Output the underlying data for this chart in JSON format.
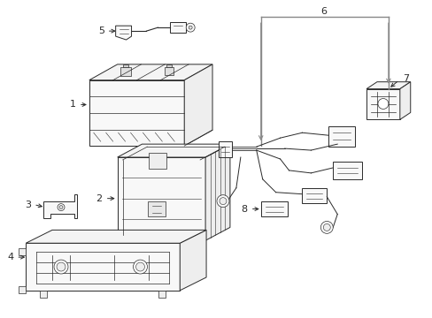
{
  "background_color": "#ffffff",
  "line_color": "#2a2a2a",
  "dim_line_color": "#888888",
  "fig_width": 4.89,
  "fig_height": 3.6,
  "dpi": 100,
  "face_color": "#f8f8f8",
  "side_color": "#eeeeee",
  "top_color": "#f4f4f4"
}
